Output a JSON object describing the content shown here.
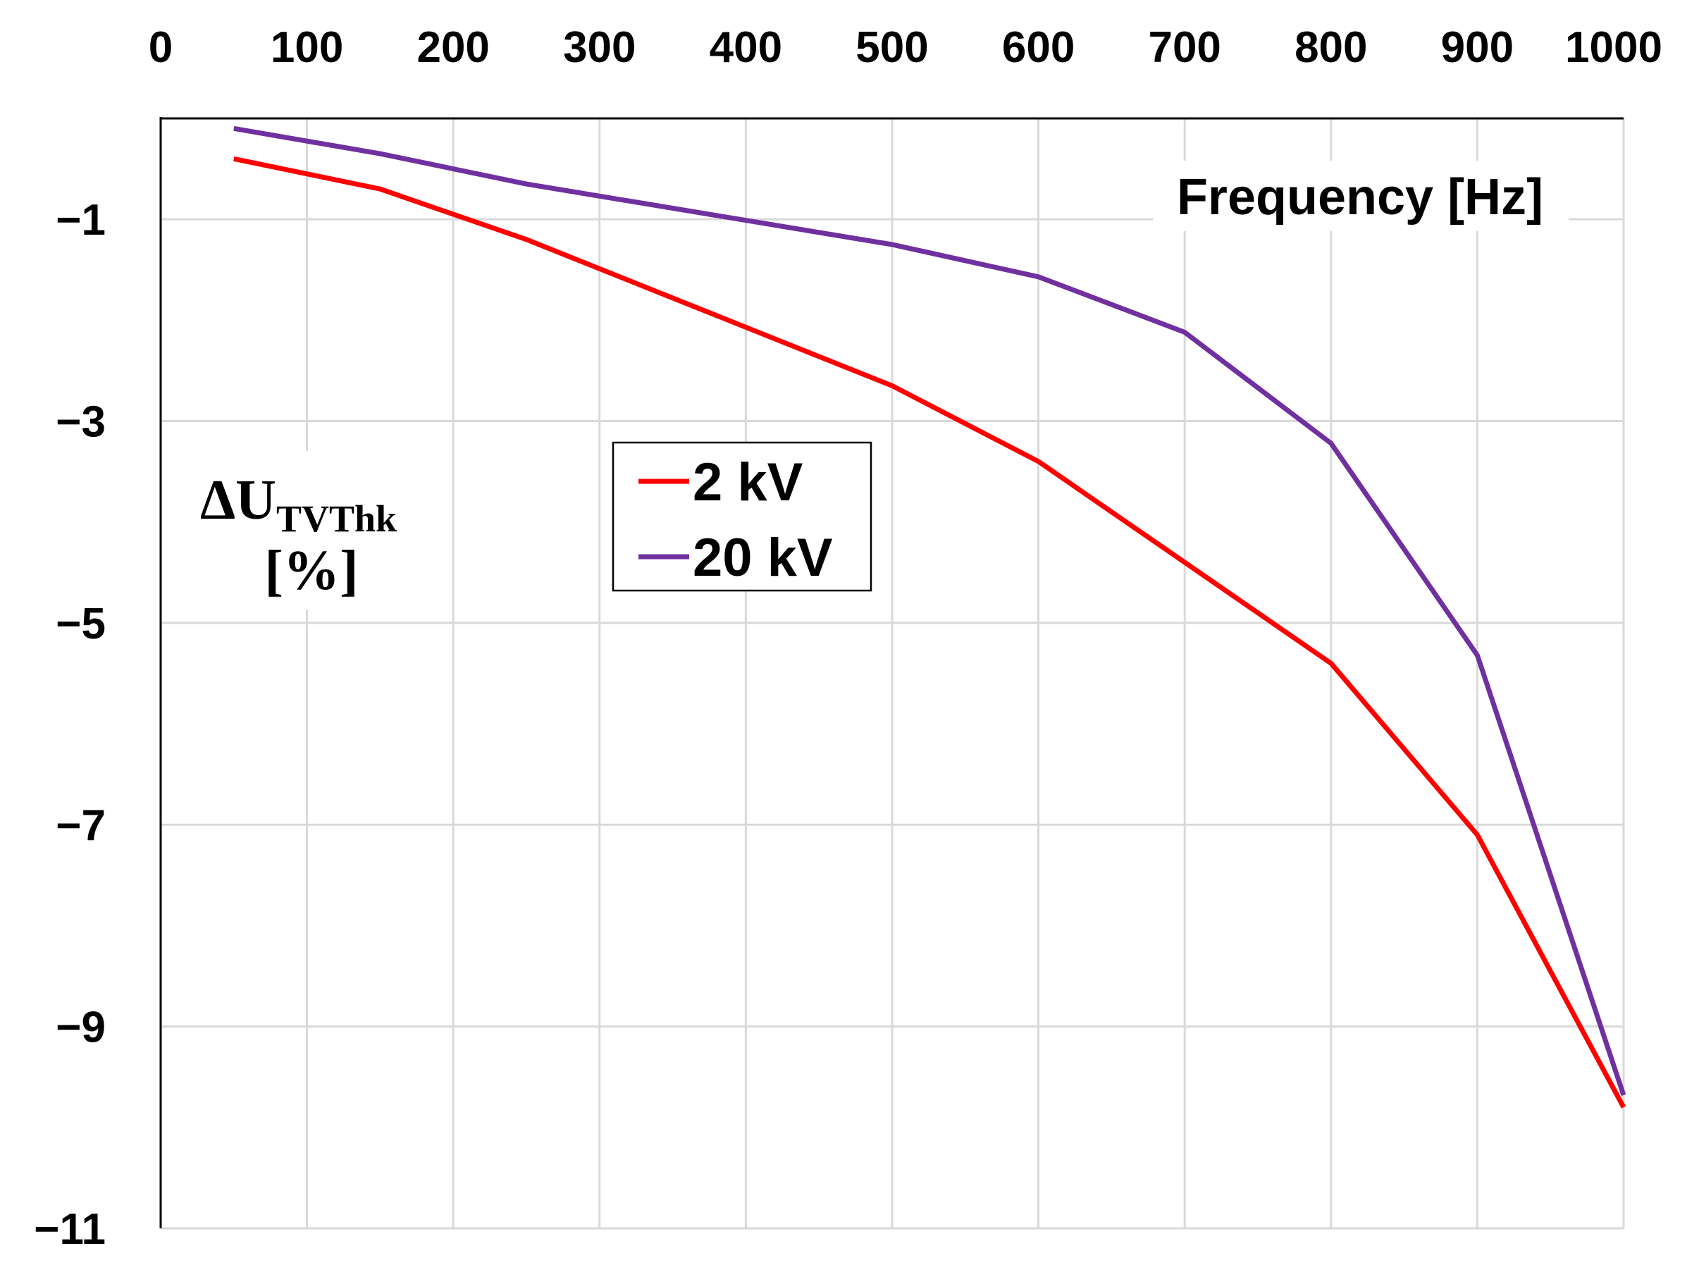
{
  "chart_data": {
    "type": "line",
    "title": "",
    "xlabel": "Frequency [Hz]",
    "ylabel": {
      "main": "ΔU",
      "subscript": "TVThk",
      "unit": "[%]"
    },
    "xlim": [
      0,
      1000
    ],
    "ylim": [
      -11,
      0
    ],
    "x_ticks": [
      "0",
      "100",
      "200",
      "300",
      "400",
      "500",
      "600",
      "700",
      "800",
      "900",
      "1000"
    ],
    "y_ticks": [
      "−1",
      "−3",
      "−5",
      "−7",
      "−9",
      "−11"
    ],
    "x_tick_values": [
      0,
      100,
      200,
      300,
      400,
      500,
      600,
      700,
      800,
      900,
      1000
    ],
    "y_tick_values": [
      -1,
      -3,
      -5,
      -7,
      -9,
      -11
    ],
    "x_axis_position": "top",
    "grid": true,
    "legend_position": "upper-left-center",
    "series": [
      {
        "name": "2 kV",
        "color": "#ff0000",
        "x": [
          50,
          150,
          250,
          500,
          600,
          700,
          800,
          900,
          1000
        ],
        "y": [
          -0.4,
          -0.7,
          -1.2,
          -2.65,
          -3.4,
          -4.4,
          -5.4,
          -7.1,
          -9.8
        ]
      },
      {
        "name": "20 kV",
        "color": "#7030a0",
        "x": [
          50,
          150,
          250,
          500,
          600,
          700,
          800,
          900,
          1000
        ],
        "y": [
          -0.1,
          -0.35,
          -0.65,
          -1.25,
          -1.57,
          -2.12,
          -3.22,
          -5.32,
          -9.68
        ]
      }
    ]
  }
}
